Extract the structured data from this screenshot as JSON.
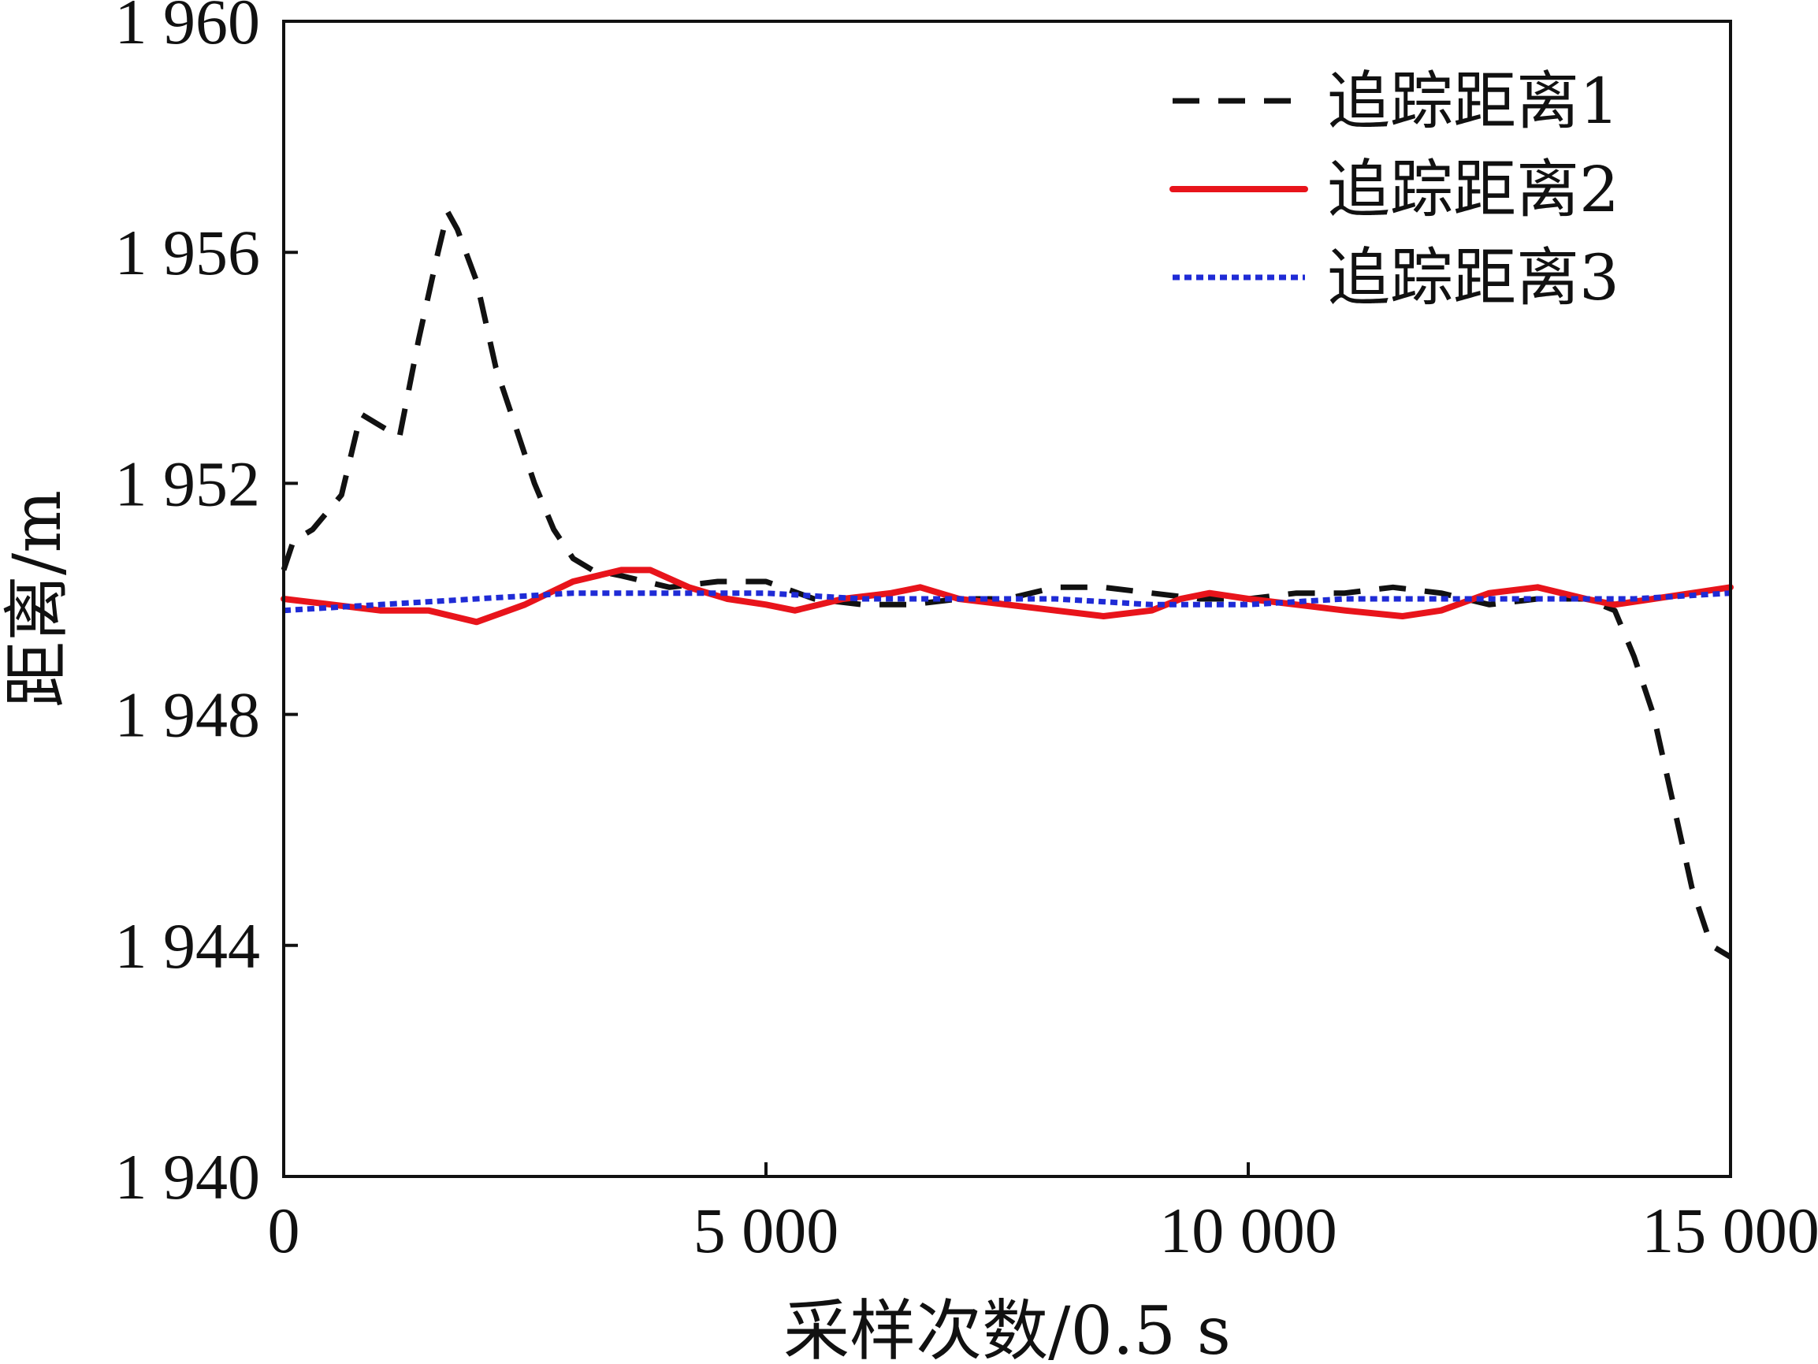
{
  "chart_data": {
    "type": "line",
    "title": "",
    "xlabel": "采样次数/0.5 s",
    "ylabel": "距离/m",
    "xlim": [
      0,
      15000
    ],
    "ylim": [
      1940,
      1960
    ],
    "x_ticks": [
      0,
      5000,
      10000,
      15000
    ],
    "x_tick_labels": [
      "0",
      "5 000",
      "10 000",
      "15 000"
    ],
    "y_ticks": [
      1940,
      1944,
      1948,
      1952,
      1956,
      1960
    ],
    "y_tick_labels": [
      "1 940",
      "1 944",
      "1 948",
      "1 952",
      "1 956",
      "1 960"
    ],
    "grid": false,
    "legend_position": "top-right",
    "series": [
      {
        "name": "追踪距离1",
        "color": "#111111",
        "style": "dashed",
        "x": [
          0,
          100,
          300,
          600,
          800,
          1000,
          1200,
          1400,
          1600,
          1700,
          1800,
          2000,
          2200,
          2400,
          2600,
          2800,
          3000,
          3200,
          3500,
          4000,
          4500,
          5000,
          5500,
          6000,
          6500,
          7000,
          7500,
          8000,
          8500,
          9000,
          9500,
          10000,
          10500,
          11000,
          11500,
          12000,
          12500,
          13000,
          13500,
          13800,
          14000,
          14200,
          14400,
          14600,
          14800,
          15000
        ],
        "y": [
          1950.5,
          1951.0,
          1951.2,
          1951.8,
          1953.2,
          1953.0,
          1952.8,
          1954.5,
          1956.0,
          1956.7,
          1956.4,
          1955.5,
          1954.0,
          1953.0,
          1952.0,
          1951.2,
          1950.7,
          1950.5,
          1950.4,
          1950.2,
          1950.3,
          1950.3,
          1950.0,
          1949.9,
          1949.9,
          1950.0,
          1950.0,
          1950.2,
          1950.2,
          1950.1,
          1950.0,
          1950.0,
          1950.1,
          1950.1,
          1950.2,
          1950.1,
          1949.9,
          1950.0,
          1950.0,
          1949.8,
          1949.0,
          1948.0,
          1946.5,
          1945.0,
          1944.0,
          1943.8
        ]
      },
      {
        "name": "追踪距离2",
        "color": "#e8141b",
        "style": "solid",
        "x": [
          0,
          500,
          1000,
          1500,
          2000,
          2500,
          3000,
          3500,
          3800,
          4200,
          4600,
          5000,
          5300,
          5800,
          6300,
          6600,
          7000,
          7500,
          8000,
          8500,
          9000,
          9300,
          9600,
          10000,
          10500,
          11000,
          11600,
          12000,
          12500,
          13000,
          13500,
          13800,
          14200,
          14600,
          15000
        ],
        "y": [
          1950.0,
          1949.9,
          1949.8,
          1949.8,
          1949.6,
          1949.9,
          1950.3,
          1950.5,
          1950.5,
          1950.2,
          1950.0,
          1949.9,
          1949.8,
          1950.0,
          1950.1,
          1950.2,
          1950.0,
          1949.9,
          1949.8,
          1949.7,
          1949.8,
          1950.0,
          1950.1,
          1950.0,
          1949.9,
          1949.8,
          1949.7,
          1949.8,
          1950.1,
          1950.2,
          1950.0,
          1949.9,
          1950.0,
          1950.1,
          1950.2
        ]
      },
      {
        "name": "追踪距离3",
        "color": "#1f2bd6",
        "style": "dotted",
        "x": [
          0,
          1000,
          2000,
          3000,
          4000,
          5000,
          6000,
          7000,
          8000,
          9000,
          10000,
          11000,
          12000,
          13000,
          14000,
          15000
        ],
        "y": [
          1949.8,
          1949.9,
          1950.0,
          1950.1,
          1950.1,
          1950.1,
          1950.0,
          1950.0,
          1950.0,
          1949.9,
          1949.9,
          1950.0,
          1950.0,
          1950.0,
          1950.0,
          1950.1
        ]
      }
    ]
  }
}
